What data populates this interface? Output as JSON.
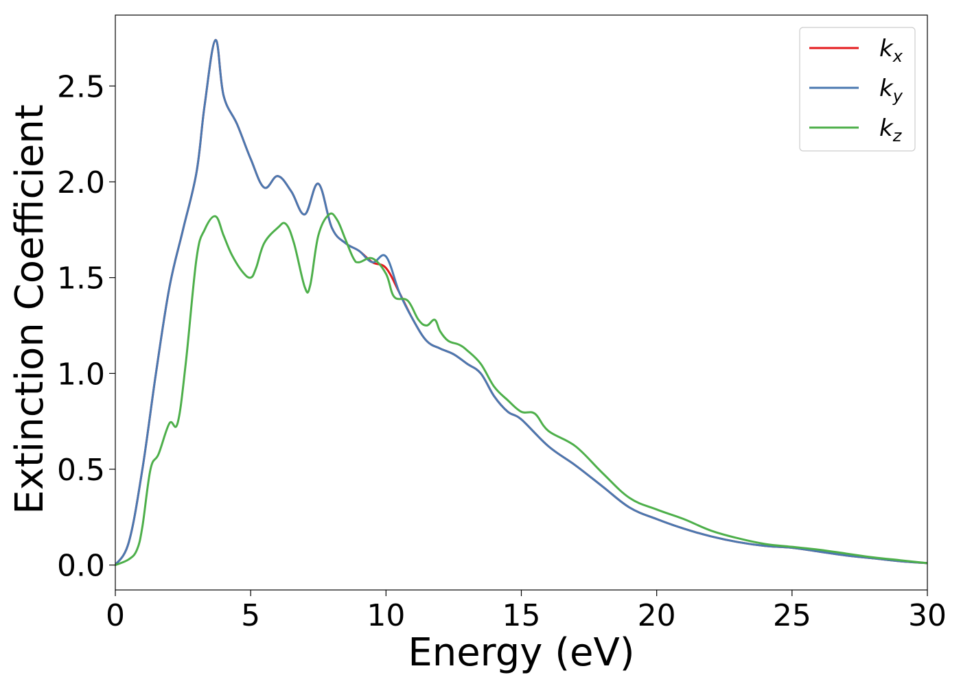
{
  "chart_data": {
    "type": "line",
    "xlabel": "Energy (eV)",
    "ylabel": "Extinction Coefficient",
    "xlim": [
      0,
      30
    ],
    "ylim": [
      -0.13,
      2.87
    ],
    "xticks": [
      0,
      5,
      10,
      15,
      20,
      25,
      30
    ],
    "xtick_labels": [
      "0",
      "5",
      "10",
      "15",
      "20",
      "25",
      "30"
    ],
    "yticks": [
      0.0,
      0.5,
      1.0,
      1.5,
      2.0,
      2.5
    ],
    "ytick_labels": [
      "0.0",
      "0.5",
      "1.0",
      "1.5",
      "2.0",
      "2.5"
    ],
    "grid": false,
    "legend_position": "top-right",
    "series": [
      {
        "name": "k_x",
        "label_main": "k",
        "label_sub": "x",
        "color": "#e41a1c",
        "x": [
          0,
          0.5,
          1.0,
          1.5,
          2.0,
          2.5,
          3.0,
          3.3,
          3.7,
          4.0,
          4.5,
          5.0,
          5.5,
          6.0,
          6.5,
          7.0,
          7.5,
          8.0,
          8.5,
          9.0,
          9.5,
          10.0,
          10.5,
          11.0,
          11.5,
          12.0,
          12.5,
          13.0,
          13.5,
          14.0,
          14.5,
          15.0,
          16.0,
          17.0,
          18.0,
          19.0,
          20.0,
          21.0,
          22.0,
          23.0,
          24.0,
          25.0,
          26.0,
          27.0,
          28.0,
          29.0,
          30.0
        ],
        "values": [
          0.0,
          0.12,
          0.5,
          1.0,
          1.45,
          1.75,
          2.05,
          2.4,
          2.74,
          2.45,
          2.3,
          2.12,
          1.97,
          2.03,
          1.95,
          1.83,
          1.99,
          1.76,
          1.68,
          1.64,
          1.58,
          1.55,
          1.42,
          1.28,
          1.17,
          1.13,
          1.1,
          1.05,
          1.0,
          0.88,
          0.8,
          0.76,
          0.62,
          0.52,
          0.41,
          0.3,
          0.24,
          0.19,
          0.15,
          0.12,
          0.1,
          0.09,
          0.07,
          0.05,
          0.035,
          0.02,
          0.01
        ]
      },
      {
        "name": "k_y",
        "label_main": "k",
        "label_sub": "y",
        "color": "#4a78b0",
        "x": [
          0,
          0.5,
          1.0,
          1.5,
          2.0,
          2.5,
          3.0,
          3.3,
          3.7,
          4.0,
          4.5,
          5.0,
          5.5,
          6.0,
          6.5,
          7.0,
          7.5,
          8.0,
          8.5,
          9.0,
          9.5,
          10.0,
          10.5,
          11.0,
          11.5,
          12.0,
          12.5,
          13.0,
          13.5,
          14.0,
          14.5,
          15.0,
          16.0,
          17.0,
          18.0,
          19.0,
          20.0,
          21.0,
          22.0,
          23.0,
          24.0,
          25.0,
          26.0,
          27.0,
          28.0,
          29.0,
          30.0
        ],
        "values": [
          0.0,
          0.12,
          0.5,
          1.0,
          1.45,
          1.75,
          2.05,
          2.4,
          2.74,
          2.45,
          2.3,
          2.12,
          1.97,
          2.03,
          1.95,
          1.83,
          1.99,
          1.76,
          1.68,
          1.64,
          1.58,
          1.61,
          1.42,
          1.28,
          1.17,
          1.13,
          1.1,
          1.05,
          1.0,
          0.88,
          0.8,
          0.76,
          0.62,
          0.52,
          0.41,
          0.3,
          0.24,
          0.19,
          0.15,
          0.12,
          0.1,
          0.09,
          0.07,
          0.05,
          0.035,
          0.02,
          0.01
        ]
      },
      {
        "name": "k_z",
        "label_main": "k",
        "label_sub": "z",
        "color": "#4daf4a",
        "x": [
          0,
          0.5,
          0.8,
          1.0,
          1.3,
          1.6,
          2.0,
          2.3,
          2.6,
          3.0,
          3.3,
          3.7,
          4.0,
          4.3,
          4.7,
          5.0,
          5.2,
          5.5,
          6.0,
          6.3,
          6.6,
          7.0,
          7.2,
          7.5,
          7.9,
          8.2,
          8.5,
          8.8,
          9.0,
          9.5,
          10.0,
          10.3,
          10.8,
          11.2,
          11.5,
          11.8,
          12.0,
          12.3,
          12.7,
          13.0,
          13.5,
          14.0,
          14.5,
          15.0,
          15.5,
          16.0,
          17.0,
          18.0,
          19.0,
          20.0,
          21.0,
          22.0,
          23.0,
          24.0,
          25.0,
          26.0,
          27.0,
          28.0,
          29.0,
          30.0
        ],
        "values": [
          0.0,
          0.03,
          0.08,
          0.2,
          0.5,
          0.58,
          0.74,
          0.74,
          1.05,
          1.6,
          1.75,
          1.82,
          1.72,
          1.62,
          1.53,
          1.5,
          1.55,
          1.68,
          1.76,
          1.78,
          1.68,
          1.45,
          1.46,
          1.72,
          1.83,
          1.8,
          1.7,
          1.6,
          1.58,
          1.6,
          1.52,
          1.4,
          1.38,
          1.28,
          1.25,
          1.28,
          1.22,
          1.17,
          1.15,
          1.12,
          1.05,
          0.93,
          0.86,
          0.8,
          0.79,
          0.7,
          0.62,
          0.48,
          0.35,
          0.29,
          0.24,
          0.18,
          0.14,
          0.11,
          0.095,
          0.08,
          0.06,
          0.04,
          0.025,
          0.01
        ]
      }
    ]
  }
}
